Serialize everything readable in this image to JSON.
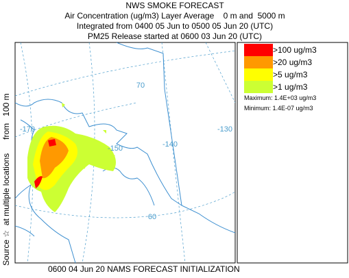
{
  "header": {
    "lines": [
      "NWS SMOKE FORECAST",
      "Air Concentration (ug/m3) Layer Average    0 m and  5000 m",
      "Integrated from 0400 05 Jun to 0500 05 Jun 20 (UTC)",
      "PM25 Release started at 0600 03 Jun 20 (UTC)"
    ]
  },
  "legend": {
    "items": [
      {
        "label": ">100 ug/m3",
        "color": "#ff0000"
      },
      {
        "label": ">20 ug/m3",
        "color": "#ff9900"
      },
      {
        "label": ">5 ug/m3",
        "color": "#ffff00"
      },
      {
        "label": ">1 ug/m3",
        "color": "#ccff33"
      }
    ],
    "maximum": "Maximum: 1.4E+03 ug/m3",
    "minimum": "Minimum: 1.4E-07 ug/m3"
  },
  "side_label": "Source ☆  at multiple locations      from   100 m",
  "footer": "0600 04 Jun 20 NAMS FORECAST INITIALIZATION",
  "graticule_labels": [
    "-170",
    "-150",
    "-140",
    "-130",
    "70",
    "60"
  ]
}
